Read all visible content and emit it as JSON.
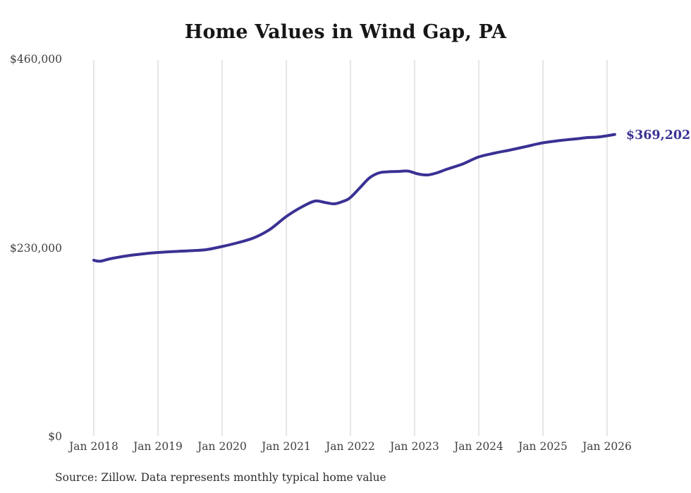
{
  "chart_data": {
    "type": "line",
    "title": "Home Values in Wind Gap, PA",
    "source_note": "Source: Zillow. Data represents monthly typical home value",
    "legend": "none",
    "grid": "vertical-only",
    "x_axis": {
      "ticks": [
        {
          "label": "Jan 2018",
          "year": 2018
        },
        {
          "label": "Jan 2019",
          "year": 2019
        },
        {
          "label": "Jan 2020",
          "year": 2020
        },
        {
          "label": "Jan 2021",
          "year": 2021
        },
        {
          "label": "Jan 2022",
          "year": 2022
        },
        {
          "label": "Jan 2023",
          "year": 2023
        },
        {
          "label": "Jan 2024",
          "year": 2024
        },
        {
          "label": "Jan 2025",
          "year": 2025
        },
        {
          "label": "Jan 2026",
          "year": 2026
        }
      ]
    },
    "y_axis": {
      "range": [
        0,
        460000
      ],
      "ticks": [
        {
          "label": "$460,000",
          "value": 460000
        },
        {
          "label": "$230,000",
          "value": 230000
        },
        {
          "label": "$0",
          "value": 0
        }
      ]
    },
    "colors": {
      "line": "#3a3194",
      "gridline": "#cccccc"
    },
    "series": [
      {
        "name": "Monthly typical home value",
        "color": "#3a3194",
        "latest_label": "$369,202",
        "latest_value": 369202,
        "points": [
          [
            2018.0,
            215800
          ],
          [
            2018.1,
            214600
          ],
          [
            2018.25,
            217500
          ],
          [
            2018.5,
            221000
          ],
          [
            2018.75,
            223500
          ],
          [
            2019.0,
            225300
          ],
          [
            2019.25,
            226500
          ],
          [
            2019.5,
            227400
          ],
          [
            2019.75,
            228700
          ],
          [
            2020.0,
            232600
          ],
          [
            2020.25,
            237300
          ],
          [
            2020.5,
            243300
          ],
          [
            2020.75,
            253700
          ],
          [
            2021.0,
            269100
          ],
          [
            2021.25,
            281200
          ],
          [
            2021.45,
            288000
          ],
          [
            2021.6,
            286300
          ],
          [
            2021.75,
            284600
          ],
          [
            2021.9,
            288000
          ],
          [
            2022.0,
            292300
          ],
          [
            2022.15,
            304400
          ],
          [
            2022.3,
            316400
          ],
          [
            2022.45,
            322400
          ],
          [
            2022.6,
            323700
          ],
          [
            2022.75,
            324100
          ],
          [
            2022.9,
            324500
          ],
          [
            2023.05,
            321100
          ],
          [
            2023.2,
            319800
          ],
          [
            2023.35,
            322400
          ],
          [
            2023.5,
            326700
          ],
          [
            2023.75,
            333200
          ],
          [
            2024.0,
            341800
          ],
          [
            2024.25,
            346500
          ],
          [
            2024.5,
            350400
          ],
          [
            2024.75,
            354700
          ],
          [
            2025.0,
            359000
          ],
          [
            2025.25,
            361600
          ],
          [
            2025.5,
            363700
          ],
          [
            2025.7,
            365400
          ],
          [
            2025.85,
            365900
          ],
          [
            2026.0,
            367600
          ],
          [
            2026.12,
            369202
          ]
        ]
      }
    ]
  }
}
